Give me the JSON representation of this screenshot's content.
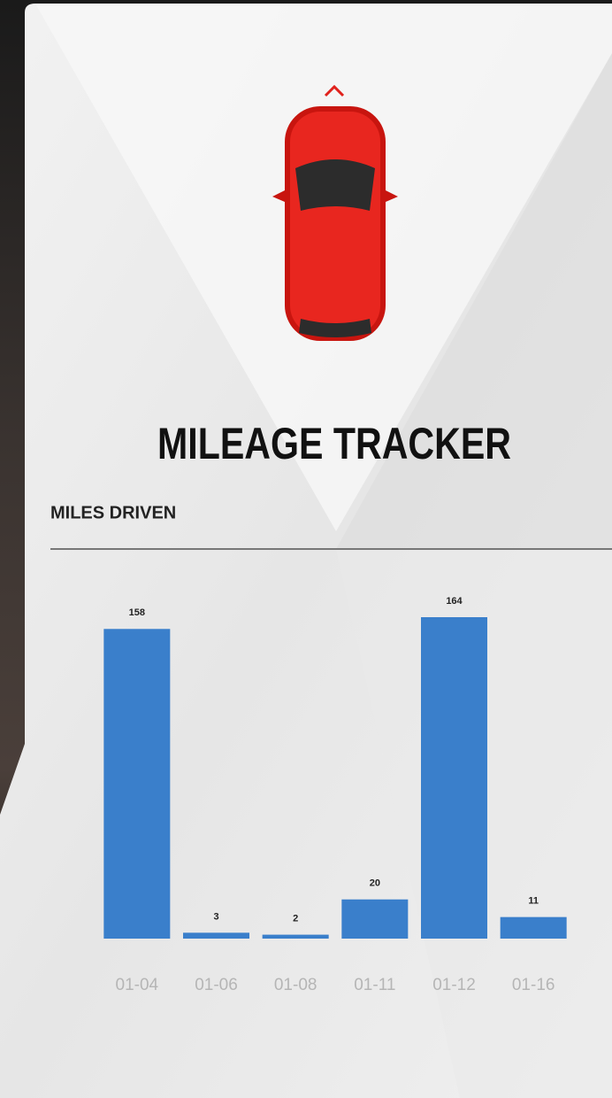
{
  "title": "MILEAGE TRACKER",
  "chart_data": {
    "type": "bar",
    "title": "MILES DRIVEN",
    "categories": [
      "01-04",
      "01-06",
      "01-08",
      "01-11",
      "01-12",
      "01-16"
    ],
    "values": [
      158,
      3,
      2,
      20,
      164,
      11
    ],
    "color": "#3a7fcb"
  }
}
